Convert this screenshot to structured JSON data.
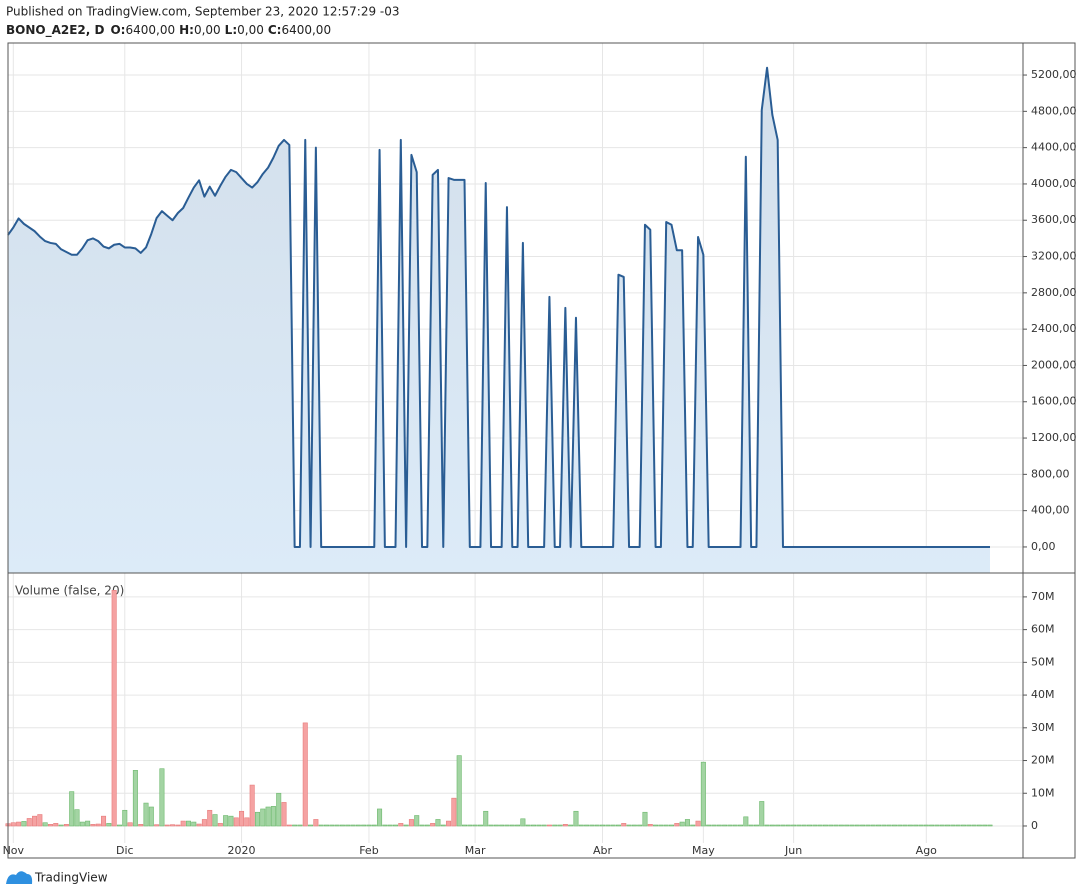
{
  "header": {
    "published": "Published on TradingView.com, September 23, 2020 12:57:29 -03",
    "symbol": "BONO_A2E2, D",
    "ohlc": [
      {
        "label": "O:",
        "value": "6400,00"
      },
      {
        "label": "H:",
        "value": "0,00"
      },
      {
        "label": "L:",
        "value": "0,00"
      },
      {
        "label": "C:",
        "value": "6400,00"
      }
    ]
  },
  "chart_data": [
    {
      "type": "area",
      "color": "#2a5d94",
      "grid": true,
      "categories": [
        null,
        "Nov",
        null,
        null,
        null,
        null,
        null,
        null,
        null,
        null,
        null,
        null,
        null,
        null,
        null,
        null,
        null,
        null,
        null,
        null,
        null,
        null,
        "Dic",
        null,
        null,
        null,
        null,
        null,
        null,
        null,
        null,
        null,
        null,
        null,
        null,
        null,
        null,
        null,
        null,
        null,
        null,
        null,
        null,
        null,
        "2020",
        null,
        null,
        null,
        null,
        null,
        null,
        null,
        null,
        null,
        null,
        null,
        null,
        null,
        null,
        null,
        null,
        null,
        null,
        null,
        null,
        null,
        null,
        null,
        "Feb",
        null,
        null,
        null,
        null,
        null,
        null,
        null,
        null,
        null,
        null,
        null,
        null,
        null,
        null,
        null,
        null,
        null,
        null,
        null,
        "Mar",
        null,
        null,
        null,
        null,
        null,
        null,
        null,
        null,
        null,
        null,
        null,
        null,
        null,
        null,
        null,
        null,
        null,
        null,
        null,
        null,
        null,
        null,
        null,
        "Abr",
        null,
        null,
        null,
        null,
        null,
        null,
        null,
        null,
        null,
        null,
        null,
        null,
        null,
        null,
        null,
        null,
        null,
        null,
        "May",
        null,
        null,
        null,
        null,
        null,
        null,
        null,
        null,
        null,
        null,
        null,
        null,
        null,
        null,
        null,
        null,
        "Jun",
        null,
        null,
        null,
        null,
        null,
        null,
        null,
        null,
        null,
        null,
        null,
        null,
        null,
        null,
        null,
        null,
        null,
        null,
        null,
        null,
        null,
        null,
        null,
        null,
        "Ago",
        null,
        null,
        null,
        null,
        null,
        null,
        null,
        null,
        null,
        null,
        null,
        null
      ],
      "values": [
        3438,
        3520,
        3620,
        3560,
        3520,
        3480,
        3420,
        3370,
        3350,
        3340,
        3280,
        3250,
        3220,
        3220,
        3290,
        3380,
        3400,
        3370,
        3310,
        3290,
        3330,
        3340,
        3300,
        3300,
        3290,
        3240,
        3300,
        3450,
        3625,
        3700,
        3650,
        3600,
        3680,
        3735,
        3850,
        3960,
        4040,
        3860,
        3970,
        3870,
        3980,
        4080,
        4155,
        4130,
        4065,
        4000,
        3960,
        4020,
        4110,
        4180,
        4290,
        4420,
        4485,
        4430,
        0,
        0,
        4485,
        0,
        4400,
        0,
        0,
        0,
        0,
        0,
        0,
        0,
        0,
        0,
        0,
        0,
        4375,
        0,
        0,
        0,
        4485,
        0,
        4320,
        4130,
        0,
        0,
        4100,
        4155,
        0,
        4065,
        4045,
        4045,
        4045,
        0,
        0,
        0,
        4010,
        0,
        0,
        0,
        3745,
        0,
        0,
        3350,
        0,
        0,
        0,
        0,
        2755,
        0,
        0,
        2635,
        0,
        2525,
        0,
        0,
        0,
        0,
        0,
        0,
        0,
        3000,
        2975,
        0,
        0,
        0,
        3550,
        3495,
        0,
        0,
        3580,
        3550,
        3270,
        3270,
        0,
        0,
        3415,
        3220,
        0,
        0,
        0,
        0,
        0,
        0,
        0,
        4300,
        0,
        0,
        4815,
        5280,
        4760,
        4485,
        0,
        0,
        0,
        0,
        0,
        0,
        0,
        0,
        0,
        0,
        0,
        0,
        0,
        0,
        0,
        0,
        0,
        0,
        0,
        0,
        0,
        0,
        0,
        0,
        0,
        0,
        0,
        0,
        0,
        0,
        0,
        0,
        0,
        0,
        0,
        0,
        0,
        0,
        0,
        0
      ],
      "ylim": [
        -287,
        5553
      ],
      "yticks": [
        {
          "value": 0,
          "label": "0,00"
        },
        {
          "value": 400,
          "label": "400,00"
        },
        {
          "value": 800,
          "label": "800,00"
        },
        {
          "value": 1200,
          "label": "1200,00"
        },
        {
          "value": 1600,
          "label": "1600,00"
        },
        {
          "value": 2000,
          "label": "2000,00"
        },
        {
          "value": 2400,
          "label": "2400,00"
        },
        {
          "value": 2800,
          "label": "2800,00"
        },
        {
          "value": 3200,
          "label": "3200,00"
        },
        {
          "value": 3600,
          "label": "3600,00"
        },
        {
          "value": 4000,
          "label": "4000,00"
        },
        {
          "value": 4400,
          "label": "4400,00"
        },
        {
          "value": 4800,
          "label": "4800,00"
        },
        {
          "value": 5200,
          "label": "5200,00"
        }
      ]
    },
    {
      "type": "bar",
      "title": "Volume (false, 20)",
      "grid": true,
      "colors": {
        "up": "#a3d4a3",
        "down": "#f5a2a2"
      },
      "values": [
        700000,
        1000000,
        1200000,
        1400000,
        2300000,
        3000000,
        3500000,
        1000000,
        500000,
        800000,
        300000,
        500000,
        10500000,
        5000000,
        1200000,
        1500000,
        500000,
        600000,
        3000000,
        800000,
        72000000,
        300000,
        4800000,
        1000000,
        17000000,
        500000,
        7000000,
        5800000,
        400000,
        17500000,
        300000,
        400000,
        300000,
        1500000,
        1500000,
        1200000,
        600000,
        2000000,
        4800000,
        3500000,
        800000,
        3200000,
        3000000,
        2500000,
        4500000,
        2500000,
        12500000,
        4200000,
        5200000,
        5800000,
        6000000,
        10000000,
        7200000,
        300000,
        0,
        0,
        31500000,
        0,
        2000000,
        0,
        0,
        0,
        0,
        0,
        0,
        0,
        0,
        0,
        0,
        0,
        5200000,
        0,
        0,
        0,
        800000,
        0,
        2000000,
        3200000,
        0,
        0,
        800000,
        2000000,
        0,
        1500000,
        8500000,
        21500000,
        0,
        0,
        0,
        0,
        4500000,
        0,
        0,
        0,
        0,
        0,
        0,
        2200000,
        0,
        0,
        0,
        0,
        300000,
        0,
        0,
        500000,
        0,
        4500000,
        0,
        0,
        0,
        0,
        0,
        0,
        0,
        0,
        800000,
        0,
        0,
        0,
        4200000,
        500000,
        0,
        0,
        0,
        0,
        800000,
        1200000,
        2000000,
        0,
        1500000,
        19500000,
        0,
        0,
        0,
        0,
        0,
        0,
        0,
        2800000,
        0,
        0,
        7500000,
        0,
        0,
        0,
        0,
        0,
        0,
        0,
        0,
        0,
        0,
        0,
        0,
        0,
        0,
        0,
        0,
        0,
        0,
        0,
        0,
        0,
        0,
        0,
        0,
        0,
        0,
        0,
        0,
        0,
        0,
        0,
        0,
        0,
        0,
        0,
        0,
        0,
        0,
        0,
        0,
        0,
        0,
        0
      ],
      "directions": [
        "down",
        "down",
        "down",
        "up",
        "down",
        "down",
        "down",
        "up",
        "down",
        "down",
        "up",
        "down",
        "up",
        "up",
        "up",
        "up",
        "down",
        "down",
        "down",
        "up",
        "down",
        "up",
        "up",
        "down",
        "up",
        "down",
        "up",
        "up",
        "down",
        "up",
        "down",
        "down",
        "down",
        "down",
        "up",
        "up",
        "down",
        "down",
        "down",
        "up",
        "down",
        "up",
        "up",
        "down",
        "down",
        "down",
        "down",
        "up",
        "up",
        "up",
        "up",
        "up",
        "down",
        "down",
        "up",
        "up",
        "down",
        "up",
        "down",
        "up",
        "up",
        "up",
        "up",
        "up",
        "up",
        "up",
        "up",
        "up",
        "up",
        "up",
        "up",
        "up",
        "up",
        "up",
        "down",
        "up",
        "down",
        "up",
        "up",
        "up",
        "down",
        "up",
        "up",
        "down",
        "down",
        "up",
        "up",
        "up",
        "up",
        "up",
        "up",
        "up",
        "up",
        "up",
        "up",
        "up",
        "up",
        "up",
        "up",
        "up",
        "up",
        "up",
        "down",
        "up",
        "up",
        "down",
        "up",
        "up",
        "up",
        "up",
        "up",
        "up",
        "up",
        "up",
        "up",
        "up",
        "down",
        "up",
        "up",
        "up",
        "up",
        "down",
        "up",
        "up",
        "up",
        "up",
        "down",
        "up",
        "up",
        "up",
        "down",
        "up",
        "up",
        "up",
        "up",
        "up",
        "up",
        "up",
        "up",
        "up",
        "up",
        "up",
        "up",
        "up",
        "up",
        "up",
        "up",
        "up",
        "up",
        "up",
        "up",
        "up",
        "up",
        "up",
        "up",
        "up",
        "up",
        "up",
        "up",
        "up",
        "up",
        "up",
        "up",
        "up",
        "up",
        "up",
        "up",
        "up",
        "up",
        "up",
        "up",
        "up",
        "up",
        "up",
        "up",
        "up",
        "up",
        "up",
        "up",
        "up",
        "up",
        "up",
        "up",
        "up",
        "up",
        "up"
      ],
      "ylim": [
        -5200000,
        77300000
      ],
      "yticks": [
        0,
        {
          "value": 10000000,
          "label": "10M"
        },
        {
          "value": 20000000,
          "label": "20M"
        },
        {
          "value": 30000000,
          "label": "30M"
        },
        {
          "value": 40000000,
          "label": "40M"
        },
        {
          "value": 50000000,
          "label": "50M"
        },
        {
          "value": 60000000,
          "label": "60M"
        },
        {
          "value": 70000000,
          "label": "70M"
        }
      ]
    }
  ],
  "footer": {
    "brand": "TradingView"
  }
}
